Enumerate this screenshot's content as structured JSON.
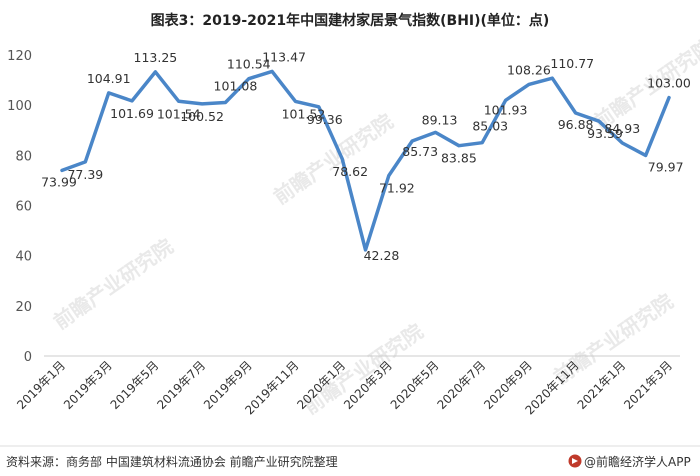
{
  "chart_data": {
    "type": "line",
    "title": "图表3：2019-2021年中国建材家居景气指数(BHI)(单位：点)",
    "xlabel": "",
    "ylabel": "",
    "ylim": [
      0,
      120
    ],
    "yticks": [
      "0",
      "20",
      "40",
      "60",
      "80",
      "100",
      "120"
    ],
    "grid": false,
    "legend": "none",
    "x": [
      "2019年1月",
      "2019年2月",
      "2019年3月",
      "2019年4月",
      "2019年5月",
      "2019年6月",
      "2019年7月",
      "2019年8月",
      "2019年9月",
      "2019年10月",
      "2019年11月",
      "2019年12月",
      "2020年1月",
      "2020年2月",
      "2020年3月",
      "2020年4月",
      "2020年5月",
      "2020年6月",
      "2020年7月",
      "2020年8月",
      "2020年9月",
      "2020年10月",
      "2020年11月",
      "2020年12月",
      "2021年1月",
      "2021年2月",
      "2021年3月"
    ],
    "xtick_labels": [
      "2019年1月",
      "2019年3月",
      "2019年5月",
      "2019年7月",
      "2019年9月",
      "2019年11月",
      "2020年1月",
      "2020年3月",
      "2020年5月",
      "2020年7月",
      "2020年9月",
      "2020年11月",
      "2021年1月",
      "2021年3月"
    ],
    "series": [
      {
        "values": [
          73.99,
          77.39,
          104.91,
          101.69,
          113.25,
          101.54,
          100.52,
          101.08,
          110.54,
          113.47,
          101.52,
          99.36,
          78.62,
          42.28,
          71.92,
          85.73,
          89.13,
          83.85,
          85.03,
          101.93,
          108.26,
          110.77,
          96.88,
          93.59,
          84.93,
          79.97,
          103.0
        ],
        "labels": [
          "73.99",
          "77.39",
          "104.91",
          "101.69",
          "113.25",
          "101.54",
          "100.52",
          "101.08",
          "110.54",
          "113.47",
          "101.52",
          "99.36",
          "78.62",
          "42.28",
          "71.92",
          "85.73",
          "89.13",
          "83.85",
          "85.03",
          "101.93",
          "108.26",
          "110.77",
          "96.88",
          "93.59",
          "84.93",
          "79.97",
          "103.00"
        ],
        "color": "#4a86c8"
      }
    ]
  },
  "footer": {
    "source": "资料来源：商务部 中国建筑材料流通协会 前瞻产业研究院整理",
    "brand": "@前瞻经济学人APP"
  },
  "watermark": {
    "text": "前瞻产业研究院"
  }
}
